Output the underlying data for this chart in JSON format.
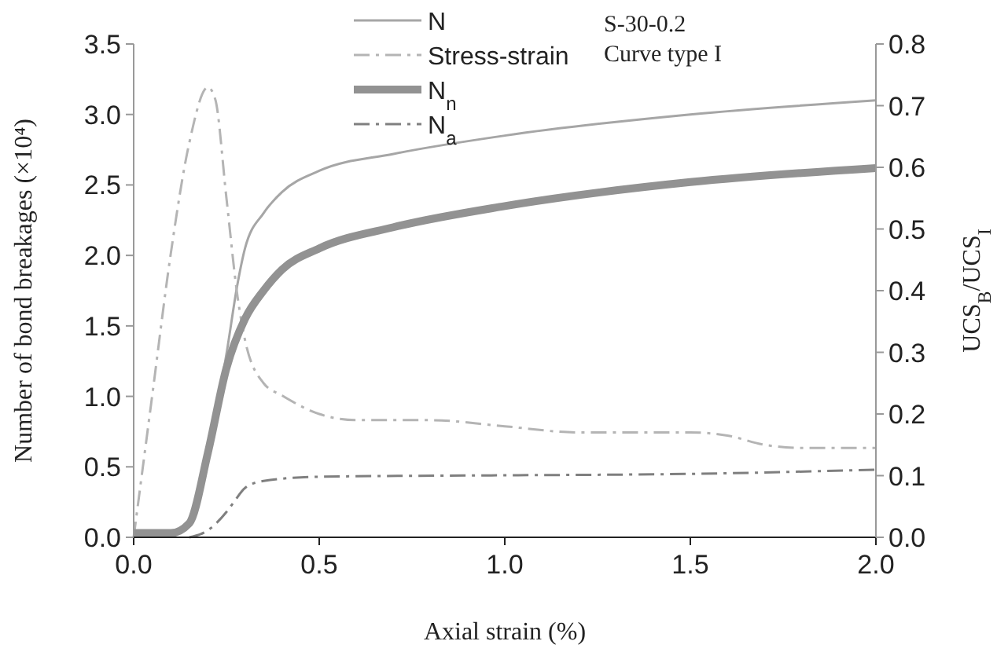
{
  "chart_data": {
    "type": "line",
    "xlabel": "Axial strain (%)",
    "ylabel": "Number of bond breakages (×10⁴)",
    "y2label": "UCS$_{B}$/UCS$_{I}$",
    "xlim": [
      0,
      2
    ],
    "xticks": [
      {
        "value": 0,
        "label": "0.0"
      },
      {
        "value": 0.5,
        "label": "0.5"
      },
      {
        "value": 1,
        "label": "1.0"
      },
      {
        "value": 1.5,
        "label": "1.5"
      },
      {
        "value": 2,
        "label": "2.0"
      }
    ],
    "ylim": [
      0,
      3.5
    ],
    "yticks": [
      {
        "value": 0,
        "label": "0.0"
      },
      {
        "value": 0.5,
        "label": "0.5"
      },
      {
        "value": 1,
        "label": "1.0"
      },
      {
        "value": 1.5,
        "label": "1.5"
      },
      {
        "value": 2,
        "label": "2.0"
      },
      {
        "value": 2.5,
        "label": "2.5"
      },
      {
        "value": 3,
        "label": "3.0"
      },
      {
        "value": 3.5,
        "label": "3.5"
      }
    ],
    "y2lim": [
      0,
      0.8
    ],
    "y2ticks": [
      {
        "value": 0,
        "label": "0.0"
      },
      0.1,
      0.2,
      0.3,
      0.4,
      0.5,
      0.6,
      0.7,
      0.8
    ],
    "grid": false,
    "legend": "top",
    "marker": "none",
    "annotations": [
      "S-30-0.2",
      "Curve type I"
    ],
    "series": [
      {
        "name": "N",
        "color": "#a6a6a6",
        "line_style": "solid",
        "x": [
          0,
          0.1,
          0.15,
          0.2,
          0.25,
          0.28,
          0.3,
          0.35,
          0.4,
          0.5,
          0.7,
          1.0,
          1.5,
          2.0
        ],
        "values": [
          0.03,
          0.03,
          0.1,
          0.6,
          1.3,
          1.8,
          2.05,
          2.3,
          2.45,
          2.6,
          2.72,
          2.85,
          3.0,
          3.1
        ]
      },
      {
        "name": "Stress-strain",
        "color": "#b4b4b4",
        "line_style": "dashed",
        "axis": "y2",
        "x": [
          0,
          0.05,
          0.1,
          0.15,
          0.2,
          0.22,
          0.25,
          0.28,
          0.3,
          0.35,
          0.4,
          0.5,
          0.6,
          0.8,
          1.0,
          1.2,
          1.5,
          1.6,
          1.7,
          1.8,
          2.0
        ],
        "values": [
          0,
          0.23,
          0.46,
          0.64,
          0.73,
          0.71,
          0.55,
          0.39,
          0.32,
          0.25,
          0.23,
          0.2,
          0.19,
          0.19,
          0.18,
          0.17,
          0.17,
          0.165,
          0.15,
          0.145,
          0.145
        ]
      },
      {
        "name": "N$_{n}$",
        "color": "#929292",
        "line_style": "solid",
        "x": [
          0,
          0.1,
          0.15,
          0.2,
          0.25,
          0.3,
          0.35,
          0.4,
          0.5,
          0.7,
          1.0,
          1.5,
          2.0
        ],
        "values": [
          0.03,
          0.03,
          0.1,
          0.6,
          1.2,
          1.55,
          1.75,
          1.9,
          2.05,
          2.2,
          2.35,
          2.52,
          2.62
        ]
      },
      {
        "name": "N$_{a}$",
        "color": "#7f7f7f",
        "line_style": "dashed",
        "x": [
          0.15,
          0.2,
          0.25,
          0.27,
          0.3,
          0.35,
          0.5,
          1.0,
          1.5,
          2.0
        ],
        "values": [
          0,
          0.05,
          0.18,
          0.25,
          0.35,
          0.4,
          0.43,
          0.44,
          0.45,
          0.48
        ]
      }
    ]
  }
}
